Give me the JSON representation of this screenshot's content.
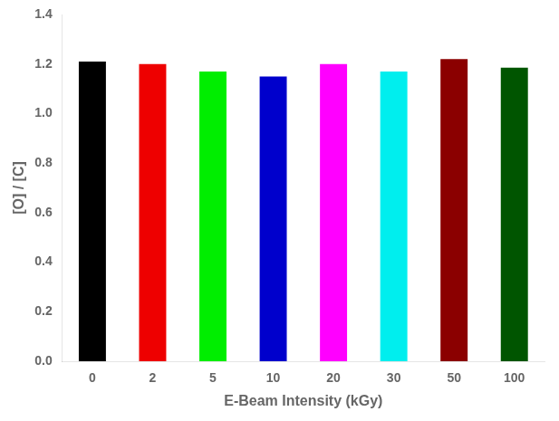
{
  "chart_data": {
    "type": "bar",
    "categories": [
      "0",
      "2",
      "5",
      "10",
      "20",
      "30",
      "50",
      "100"
    ],
    "values": [
      1.21,
      1.2,
      1.17,
      1.15,
      1.2,
      1.17,
      1.22,
      1.185
    ],
    "colors": [
      "#000000",
      "#ee0000",
      "#00ee00",
      "#0000cc",
      "#ff00ff",
      "#00eeee",
      "#8b0000",
      "#005500"
    ],
    "xlabel": "E-Beam Intensity (kGy)",
    "ylabel": "[O] / [C]",
    "ylim": [
      0,
      1.4
    ],
    "yticks": [
      {
        "value": 0,
        "label": "0.0"
      },
      0.2,
      0.4,
      0.6,
      0.8,
      {
        "value": 1,
        "label": "1.0"
      },
      1.2,
      1.4
    ],
    "grid": false
  }
}
